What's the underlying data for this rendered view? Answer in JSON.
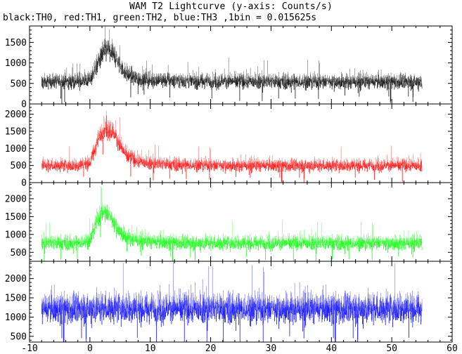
{
  "figure": {
    "title": "WAM T2 Lightcurve (y-axis: Counts/s)",
    "subtitle": "black:TH0, red:TH1, green:TH2, blue:TH3 ,1bin = 0.015625s"
  },
  "chart_data": {
    "type": "line",
    "x_axis": {
      "range": [
        -10,
        60
      ],
      "ticks": [
        -10,
        0,
        10,
        20,
        30,
        40,
        50,
        60
      ],
      "tick_labels": [
        "-10",
        "0",
        "10",
        "20",
        "30",
        "40",
        "50",
        "60"
      ],
      "label": ""
    },
    "panels": [
      {
        "series_name": "TH0",
        "color": "#000000",
        "ylim": [
          0,
          1900
        ],
        "y_ticks": [
          0,
          500,
          1000,
          1500
        ],
        "y_tick_labels": [
          "0",
          "500",
          "1000",
          "1500"
        ],
        "x": [
          -8,
          -6,
          -4,
          -2,
          0,
          1,
          2,
          3,
          4,
          5,
          6,
          8,
          10,
          15,
          20,
          25,
          30,
          35,
          40,
          45,
          50,
          55
        ],
        "y": [
          560,
          560,
          560,
          560,
          600,
          900,
          1250,
          1350,
          1200,
          950,
          750,
          640,
          600,
          580,
          570,
          570,
          560,
          560,
          560,
          560,
          560,
          560
        ],
        "noise_amplitude": 450
      },
      {
        "series_name": "TH1",
        "color": "#ff0000",
        "ylim": [
          0,
          2300
        ],
        "y_ticks": [
          0,
          500,
          1000,
          1500,
          2000
        ],
        "y_tick_labels": [
          "0",
          "500",
          "1000",
          "1500",
          "2000"
        ],
        "x": [
          -8,
          -6,
          -4,
          -2,
          0,
          1,
          2,
          3,
          4,
          5,
          6,
          8,
          10,
          15,
          20,
          25,
          30,
          35,
          40,
          45,
          50,
          55
        ],
        "y": [
          520,
          520,
          520,
          520,
          600,
          1100,
          1550,
          1650,
          1450,
          1100,
          820,
          640,
          580,
          540,
          530,
          520,
          520,
          520,
          520,
          520,
          520,
          520
        ],
        "noise_amplitude": 450
      },
      {
        "series_name": "TH2",
        "color": "#00ff00",
        "ylim": [
          250,
          2450
        ],
        "y_ticks": [
          500,
          1000,
          1500,
          2000
        ],
        "y_tick_labels": [
          "500",
          "1000",
          "1500",
          "2000"
        ],
        "x": [
          -8,
          -6,
          -4,
          -2,
          0,
          1,
          2,
          3,
          4,
          5,
          6,
          8,
          10,
          15,
          20,
          25,
          30,
          35,
          40,
          45,
          50,
          55
        ],
        "y": [
          780,
          780,
          780,
          780,
          850,
          1350,
          1650,
          1600,
          1350,
          1100,
          950,
          850,
          820,
          790,
          780,
          780,
          780,
          780,
          780,
          780,
          780,
          780
        ],
        "noise_amplitude": 500
      },
      {
        "series_name": "TH3",
        "color": "#0000ff",
        "ylim": [
          350,
          2450
        ],
        "y_ticks": [
          500,
          1000,
          1500,
          2000
        ],
        "y_tick_labels": [
          "500",
          "1000",
          "1500",
          "2000"
        ],
        "x": [
          -8,
          -6,
          -4,
          -2,
          0,
          2,
          4,
          6,
          8,
          10,
          15,
          20,
          25,
          30,
          35,
          40,
          45,
          50,
          55
        ],
        "y": [
          1250,
          1250,
          1250,
          1250,
          1260,
          1270,
          1270,
          1260,
          1250,
          1250,
          1250,
          1250,
          1250,
          1250,
          1250,
          1250,
          1250,
          1250,
          1250
        ],
        "noise_amplitude": 950
      }
    ],
    "grid": false,
    "legend": "none"
  }
}
